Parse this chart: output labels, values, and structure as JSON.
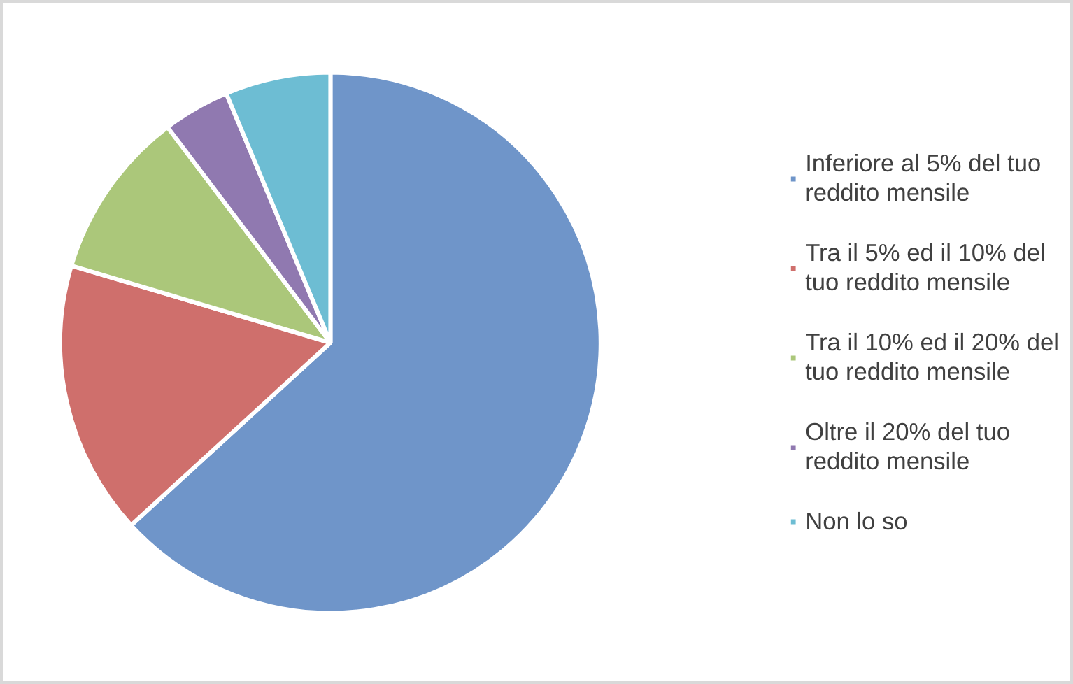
{
  "chart_data": {
    "type": "pie",
    "categories": [
      "Inferiore al 5% del tuo reddito mensile",
      "Tra il 5% ed il 10% del tuo reddito mensile",
      "Tra il 10% ed il 20% del tuo reddito mensile",
      "Oltre il 20% del tuo reddito mensile",
      "Non lo so"
    ],
    "values": [
      63.2,
      16.4,
      10.1,
      4,
      6.3
    ],
    "colors": [
      "#6f95c9",
      "#cf6f6c",
      "#abc77a",
      "#9079b0",
      "#6dbdd3"
    ],
    "legend": "right"
  }
}
